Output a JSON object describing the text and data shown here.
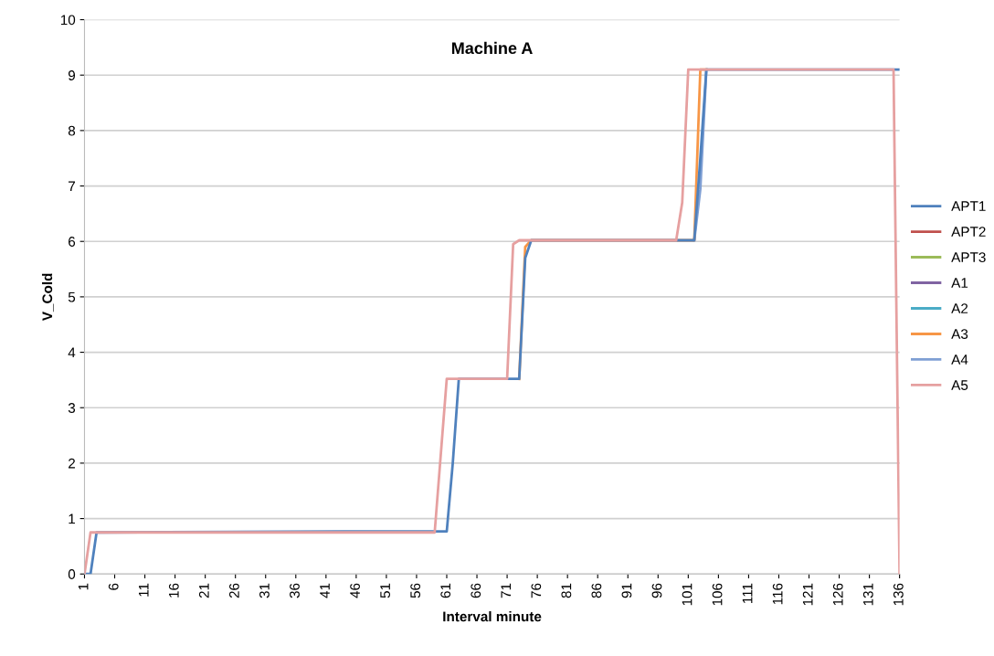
{
  "chart_data": {
    "type": "line",
    "title": "Machine A",
    "xlabel": "Interval minute",
    "ylabel": "V_Cold",
    "series": [
      {
        "name": "APT1",
        "color": "#4f81bd",
        "x": [
          1,
          2,
          3,
          44,
          61,
          62,
          63,
          73,
          74,
          75,
          102,
          103,
          104,
          136
        ],
        "values": [
          0,
          0,
          0.75,
          0.77,
          0.77,
          2,
          3.52,
          3.52,
          5.7,
          6.02,
          6.02,
          7.5,
          9.1,
          9.1
        ]
      },
      {
        "name": "APT2",
        "color": "#c0504d"
      },
      {
        "name": "APT3",
        "color": "#9bbb59"
      },
      {
        "name": "A1",
        "color": "#8064a2"
      },
      {
        "name": "A2",
        "color": "#4bacc6"
      },
      {
        "name": "A3",
        "color": "#f79646",
        "x": [
          73,
          74,
          75,
          102,
          103,
          104
        ],
        "values": [
          3.52,
          5.9,
          6.02,
          6.02,
          9.1,
          9.1
        ]
      },
      {
        "name": "A4",
        "color": "#7f9fd4",
        "x": [
          102,
          103,
          104
        ],
        "values": [
          6.02,
          6.94,
          9.1
        ]
      },
      {
        "name": "A5",
        "color": "#e6a0a0",
        "x": [
          1,
          2,
          59,
          61,
          71,
          72,
          73,
          99,
          100,
          101,
          135,
          136
        ],
        "values": [
          0,
          0.75,
          0.75,
          3.52,
          3.52,
          5.95,
          6.02,
          6.02,
          6.7,
          9.1,
          9.1,
          0
        ]
      }
    ],
    "xlim": [
      1,
      136
    ],
    "xticks": [
      1,
      6,
      11,
      16,
      21,
      26,
      31,
      36,
      41,
      46,
      51,
      56,
      61,
      66,
      71,
      76,
      81,
      86,
      91,
      96,
      101,
      106,
      111,
      116,
      121,
      126,
      131,
      136
    ],
    "ylim": [
      0,
      10
    ],
    "yticks": [
      0,
      1,
      2,
      3,
      4,
      5,
      6,
      7,
      8,
      9,
      10
    ],
    "grid": "y",
    "legend": "right",
    "marker": "none",
    "line_style": "solid"
  }
}
